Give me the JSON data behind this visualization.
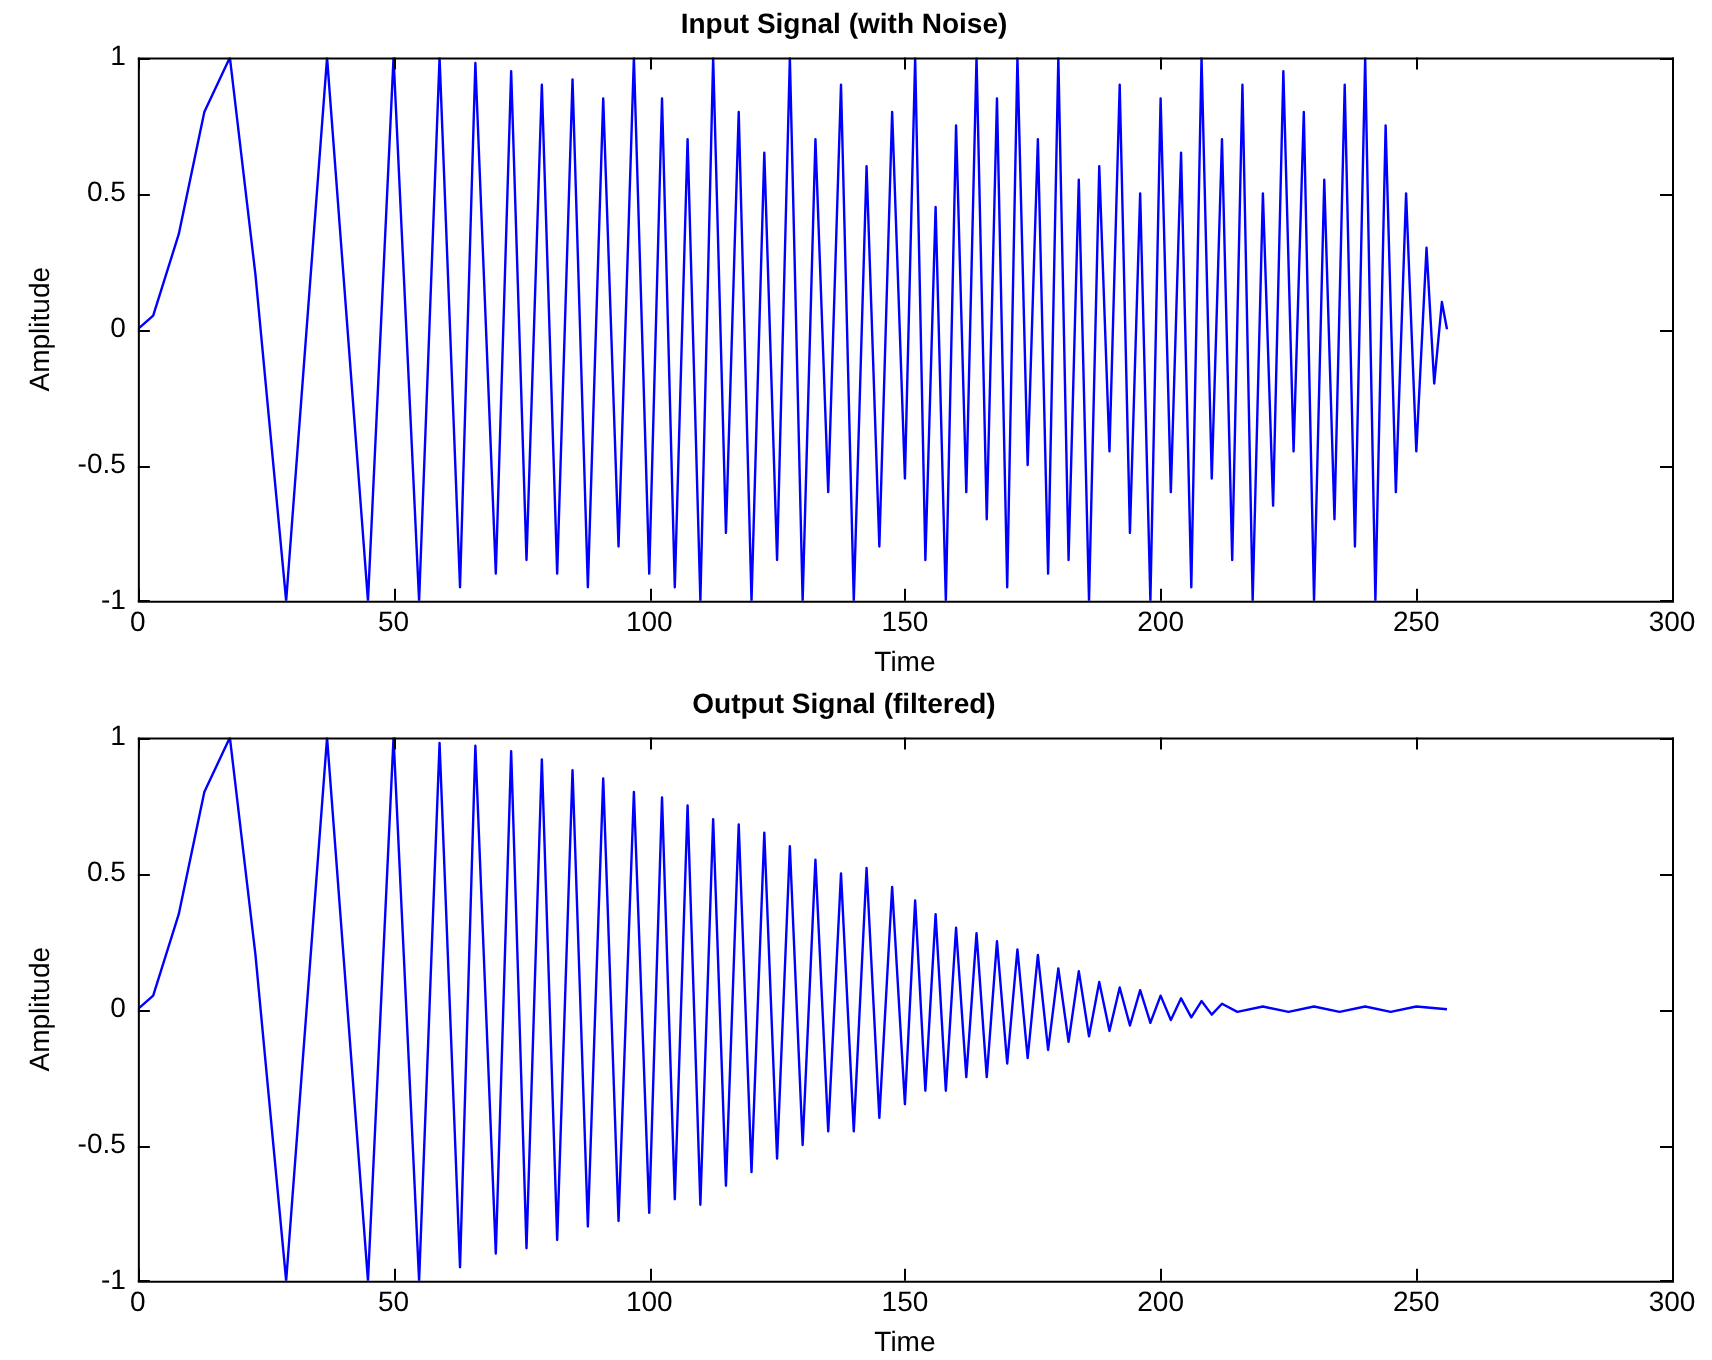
{
  "chart_data": [
    {
      "type": "line",
      "title": "Input Signal (with Noise)",
      "xlabel": "Time",
      "ylabel": "Amplitude",
      "marker": "none",
      "grid": false,
      "legend": false,
      "x": [
        0,
        3,
        8,
        13,
        18,
        23,
        29,
        33,
        37,
        41,
        45,
        50,
        55,
        59,
        63,
        66,
        70,
        73,
        76,
        79,
        82,
        85,
        88,
        91,
        94,
        97,
        100,
        102.5,
        105,
        107.5,
        110,
        112.5,
        115,
        117.5,
        120,
        122.5,
        125,
        127.5,
        130,
        132.5,
        135,
        137.5,
        140,
        142.5,
        145,
        147.5,
        150,
        152,
        154,
        156,
        158,
        160,
        162,
        164,
        166,
        168,
        170,
        172,
        174,
        176,
        178,
        180,
        182,
        184,
        186,
        188,
        190,
        192,
        194,
        196,
        198,
        200,
        202,
        204,
        206,
        208,
        210,
        212,
        214,
        216,
        218,
        220,
        222,
        224,
        226,
        228,
        230,
        232,
        234,
        236,
        238,
        240,
        242,
        244,
        246,
        248,
        250,
        252,
        253.5,
        255,
        256
      ],
      "color": "#0000ff",
      "values": [
        0,
        0.05,
        0.35,
        0.8,
        1,
        0.2,
        -1,
        0,
        1,
        0,
        -1,
        1,
        -1,
        1,
        -0.95,
        0.98,
        -0.9,
        0.95,
        -0.85,
        0.9,
        -0.9,
        0.92,
        -0.95,
        0.85,
        -0.8,
        1,
        -0.9,
        0.85,
        -0.95,
        0.7,
        -1,
        1,
        -0.75,
        0.8,
        -1,
        0.65,
        -0.85,
        1,
        -1,
        0.7,
        -0.6,
        0.9,
        -1,
        0.6,
        -0.8,
        0.8,
        -0.55,
        1,
        -0.85,
        0.45,
        -1,
        0.75,
        -0.6,
        1,
        -0.7,
        0.85,
        -0.95,
        1,
        -0.5,
        0.7,
        -0.9,
        1,
        -0.85,
        0.55,
        -1,
        0.6,
        -0.45,
        0.9,
        -0.75,
        0.5,
        -1,
        0.85,
        -0.6,
        0.65,
        -0.95,
        1,
        -0.55,
        0.7,
        -0.85,
        0.9,
        -1,
        0.5,
        -0.65,
        0.95,
        -0.45,
        0.8,
        -1,
        0.55,
        -0.7,
        0.9,
        -0.8,
        1,
        -1,
        0.75,
        -0.6,
        0.5,
        -0.45,
        0.3,
        -0.2,
        0.1,
        0
      ],
      "xlim": [
        0,
        300
      ],
      "ylim": [
        -1,
        1
      ],
      "xticks": [
        0,
        50,
        100,
        150,
        200,
        250,
        300
      ],
      "yticks": [
        -1,
        -0.5,
        0,
        0.5,
        1
      ]
    },
    {
      "type": "line",
      "title": "Output Signal (filtered)",
      "xlabel": "Time",
      "ylabel": "Amplitude",
      "marker": "none",
      "grid": false,
      "legend": false,
      "x": [
        0,
        3,
        8,
        13,
        18,
        23,
        29,
        33,
        37,
        41,
        45,
        50,
        55,
        59,
        63,
        66,
        70,
        73,
        76,
        79,
        82,
        85,
        88,
        91,
        94,
        97,
        100,
        102.5,
        105,
        107.5,
        110,
        112.5,
        115,
        117.5,
        120,
        122.5,
        125,
        127.5,
        130,
        132.5,
        135,
        137.5,
        140,
        142.5,
        145,
        147.5,
        150,
        152,
        154,
        156,
        158,
        160,
        162,
        164,
        166,
        168,
        170,
        172,
        174,
        176,
        178,
        180,
        182,
        184,
        186,
        188,
        190,
        192,
        194,
        196,
        198,
        200,
        202,
        204,
        206,
        208,
        210,
        212,
        215,
        220,
        225,
        230,
        235,
        240,
        245,
        250,
        256
      ],
      "color": "#0000ff",
      "values": [
        0,
        0.05,
        0.35,
        0.8,
        1,
        0.2,
        -1,
        0,
        1,
        0,
        -1,
        1,
        -1,
        0.98,
        -0.95,
        0.97,
        -0.9,
        0.95,
        -0.88,
        0.92,
        -0.85,
        0.88,
        -0.8,
        0.85,
        -0.78,
        0.8,
        -0.75,
        0.78,
        -0.7,
        0.75,
        -0.72,
        0.7,
        -0.65,
        0.68,
        -0.6,
        0.65,
        -0.55,
        0.6,
        -0.5,
        0.55,
        -0.45,
        0.5,
        -0.45,
        0.52,
        -0.4,
        0.45,
        -0.35,
        0.4,
        -0.3,
        0.35,
        -0.3,
        0.3,
        -0.25,
        0.28,
        -0.25,
        0.25,
        -0.2,
        0.22,
        -0.18,
        0.2,
        -0.15,
        0.15,
        -0.12,
        0.14,
        -0.1,
        0.1,
        -0.08,
        0.08,
        -0.06,
        0.07,
        -0.05,
        0.05,
        -0.04,
        0.04,
        -0.03,
        0.03,
        -0.02,
        0.02,
        -0.01,
        0.01,
        -0.01,
        0.01,
        -0.01,
        0.01,
        -0.01,
        0.01,
        0
      ],
      "xlim": [
        0,
        300
      ],
      "ylim": [
        -1,
        1
      ],
      "xticks": [
        0,
        50,
        100,
        150,
        200,
        250,
        300
      ],
      "yticks": [
        -1,
        -0.5,
        0,
        0.5,
        1
      ]
    }
  ]
}
